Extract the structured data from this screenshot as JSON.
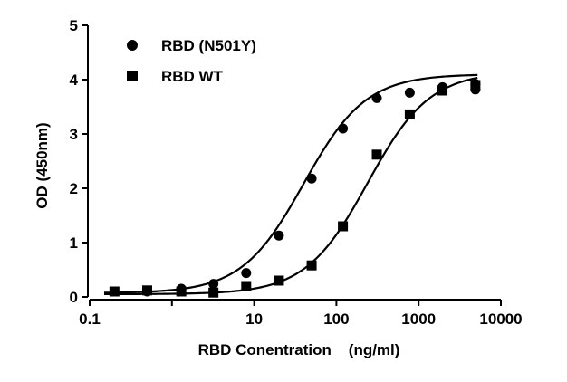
{
  "chart_data": {
    "type": "scatter",
    "title": "",
    "xlabel": "RBD Conentration    (ng/ml)",
    "ylabel": "OD (450nm)",
    "xscale": "log",
    "xlim": [
      0.1,
      10000
    ],
    "ylim": [
      0,
      5
    ],
    "xticks": [
      0.1,
      10,
      100,
      1000,
      10000
    ],
    "xtick_labels": [
      "0.1",
      "10",
      "100",
      "1000",
      "10000"
    ],
    "xminor_ticks": [
      1
    ],
    "yticks": [
      0,
      1,
      2,
      3,
      4,
      5
    ],
    "ytick_labels": [
      "0",
      "1",
      "2",
      "3",
      "4",
      "5"
    ],
    "grid": false,
    "legend": "top-left",
    "series": [
      {
        "name": "RBD (N501Y)",
        "marker": "circle",
        "x": [
          0.2,
          0.5,
          1.3,
          3.2,
          8.0,
          20,
          50,
          120,
          310,
          780,
          1950,
          4900,
          4900
        ],
        "y": [
          0.1,
          0.1,
          0.15,
          0.24,
          0.44,
          1.13,
          2.18,
          3.1,
          3.66,
          3.76,
          3.86,
          3.92,
          3.82
        ],
        "fit": {
          "bottom": 0.07,
          "top": 4.1,
          "ec50": 40,
          "hill": 1.15
        }
      },
      {
        "name": "RBD WT",
        "marker": "square",
        "x": [
          0.2,
          0.5,
          1.3,
          3.2,
          8.0,
          20,
          50,
          120,
          310,
          780,
          1950,
          4900
        ],
        "y": [
          0.1,
          0.12,
          0.1,
          0.08,
          0.2,
          0.3,
          0.58,
          1.3,
          2.62,
          3.36,
          3.8,
          3.9
        ],
        "fit": {
          "bottom": 0.05,
          "top": 4.15,
          "ec50": 240,
          "hill": 1.15
        }
      }
    ]
  }
}
